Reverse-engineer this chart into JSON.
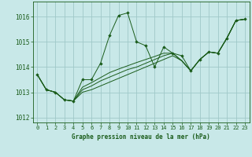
{
  "title": "Graphe pression niveau de la mer (hPa)",
  "bg_color": "#c8e8e8",
  "plot_bg_color": "#c8e8e8",
  "grid_color": "#a0c8c8",
  "line_color": "#1a5c1a",
  "marker_color": "#1a5c1a",
  "label_bg_color": "#c8e8e8",
  "xlim": [
    -0.5,
    23.5
  ],
  "ylim": [
    1011.8,
    1016.6
  ],
  "yticks": [
    1012,
    1013,
    1014,
    1015,
    1016
  ],
  "xticks": [
    0,
    1,
    2,
    3,
    4,
    5,
    6,
    7,
    8,
    9,
    10,
    11,
    12,
    13,
    14,
    15,
    16,
    17,
    18,
    19,
    20,
    21,
    22,
    23
  ],
  "line_main": [
    1013.7,
    1013.1,
    1013.0,
    1012.7,
    1012.65,
    1013.5,
    1013.5,
    1014.15,
    1015.25,
    1016.05,
    1016.15,
    1015.0,
    1014.85,
    1014.0,
    1014.8,
    1014.55,
    1014.45,
    1013.85,
    1014.3,
    1014.6,
    1014.55,
    1015.15,
    1015.85,
    1015.9
  ],
  "line_rise1": [
    1013.7,
    1013.1,
    1013.0,
    1012.7,
    1012.65,
    1013.0,
    1013.1,
    1013.25,
    1013.4,
    1013.55,
    1013.7,
    1013.85,
    1014.0,
    1014.15,
    1014.3,
    1014.45,
    1014.25,
    1013.85,
    1014.3,
    1014.6,
    1014.55,
    1015.15,
    1015.85,
    1015.9
  ],
  "line_rise2": [
    1013.7,
    1013.1,
    1013.0,
    1012.7,
    1012.65,
    1013.1,
    1013.25,
    1013.45,
    1013.6,
    1013.75,
    1013.9,
    1014.0,
    1014.15,
    1014.3,
    1014.45,
    1014.55,
    1014.25,
    1013.85,
    1014.3,
    1014.6,
    1014.55,
    1015.15,
    1015.85,
    1015.9
  ],
  "line_rise3": [
    1013.7,
    1013.1,
    1013.0,
    1012.7,
    1012.65,
    1013.2,
    1013.38,
    1013.58,
    1013.78,
    1013.92,
    1014.05,
    1014.18,
    1014.3,
    1014.42,
    1014.55,
    1014.55,
    1014.25,
    1013.85,
    1014.3,
    1014.6,
    1014.55,
    1015.15,
    1015.85,
    1015.9
  ]
}
